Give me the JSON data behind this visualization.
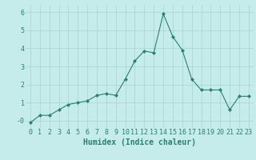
{
  "x": [
    0,
    1,
    2,
    3,
    4,
    5,
    6,
    7,
    8,
    9,
    10,
    11,
    12,
    13,
    14,
    15,
    16,
    17,
    18,
    19,
    20,
    21,
    22,
    23
  ],
  "y": [
    -0.1,
    0.3,
    0.3,
    0.6,
    0.9,
    1.0,
    1.1,
    1.4,
    1.5,
    1.4,
    2.3,
    3.3,
    3.85,
    3.75,
    5.9,
    4.65,
    3.9,
    2.3,
    1.7,
    1.7,
    1.7,
    0.6,
    1.35,
    1.35
  ],
  "line_color": "#2a7f75",
  "marker": "D",
  "marker_size": 2.0,
  "bg_color": "#c5eceb",
  "grid_color": "#aad8d6",
  "xlabel": "Humidex (Indice chaleur)",
  "xlabel_fontsize": 7,
  "tick_fontsize": 6,
  "ylim": [
    -0.4,
    6.4
  ],
  "xlim": [
    -0.5,
    23.5
  ],
  "yticks": [
    0,
    1,
    2,
    3,
    4,
    5,
    6
  ],
  "ytick_labels": [
    "-0",
    "1",
    "2",
    "3",
    "4",
    "5",
    "6"
  ]
}
